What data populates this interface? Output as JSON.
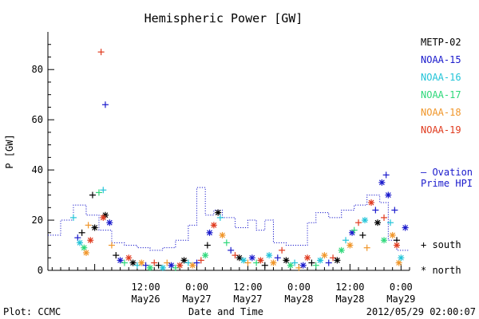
{
  "chart_data": {
    "type": "scatter",
    "title": "Hemispheric Power [GW]",
    "ylabel": "P [GW]",
    "xlabel": "Date and Time",
    "ylim": [
      0,
      95
    ],
    "xlim": [
      "2012-05-25 13:00",
      "2012-05-29 02:00"
    ],
    "y_ticks": [
      0,
      20,
      40,
      60,
      80
    ],
    "x_ticks": [
      {
        "time": "12:00",
        "date": "May26"
      },
      {
        "time": "0:00",
        "date": "May27"
      },
      {
        "time": "12:00",
        "date": "May27"
      },
      {
        "time": "0:00",
        "date": "May28"
      },
      {
        "time": "12:00",
        "date": "May28"
      },
      {
        "time": "0:00",
        "date": "May29"
      }
    ],
    "grid": false,
    "legend_position": "right",
    "series": [
      {
        "name": "METP-02",
        "color": "#000000"
      },
      {
        "name": "NOAA-15",
        "color": "#1a1acc"
      },
      {
        "name": "NOAA-16",
        "color": "#22c4d8"
      },
      {
        "name": "NOAA-17",
        "color": "#2ed87a"
      },
      {
        "name": "NOAA-18",
        "color": "#f0962a"
      },
      {
        "name": "NOAA-19",
        "color": "#e03a1e"
      }
    ],
    "ovation": {
      "label_line1": "— Ovation",
      "label_line2": "Prime HPI",
      "color": "#1a1acc",
      "points": [
        [
          "2012-05-25 13:00",
          14
        ],
        [
          "2012-05-25 16:00",
          20
        ],
        [
          "2012-05-25 19:00",
          26
        ],
        [
          "2012-05-25 22:00",
          22
        ],
        [
          "2012-05-26 01:00",
          16
        ],
        [
          "2012-05-26 04:00",
          11
        ],
        [
          "2012-05-26 07:00",
          10
        ],
        [
          "2012-05-26 10:00",
          9
        ],
        [
          "2012-05-26 13:00",
          8
        ],
        [
          "2012-05-26 16:00",
          9
        ],
        [
          "2012-05-26 19:00",
          12
        ],
        [
          "2012-05-26 22:00",
          18
        ],
        [
          "2012-05-27 00:00",
          33
        ],
        [
          "2012-05-27 02:00",
          22
        ],
        [
          "2012-05-27 04:00",
          24
        ],
        [
          "2012-05-27 06:00",
          21
        ],
        [
          "2012-05-27 09:00",
          17
        ],
        [
          "2012-05-27 12:00",
          20
        ],
        [
          "2012-05-27 14:00",
          16
        ],
        [
          "2012-05-27 16:00",
          20
        ],
        [
          "2012-05-27 18:00",
          11
        ],
        [
          "2012-05-27 21:00",
          10
        ],
        [
          "2012-05-28 00:00",
          10
        ],
        [
          "2012-05-28 02:00",
          19
        ],
        [
          "2012-05-28 04:00",
          23
        ],
        [
          "2012-05-28 07:00",
          21
        ],
        [
          "2012-05-28 10:00",
          24
        ],
        [
          "2012-05-28 13:00",
          26
        ],
        [
          "2012-05-28 16:00",
          30
        ],
        [
          "2012-05-28 19:00",
          27
        ],
        [
          "2012-05-28 21:00",
          12
        ],
        [
          "2012-05-28 23:00",
          8
        ],
        [
          "2012-05-29 02:00",
          8
        ]
      ]
    },
    "markers": {
      "south": "+",
      "north": "*"
    },
    "points": [
      {
        "s": 5,
        "m": "+",
        "t": "2012-05-26 01:30",
        "y": 87
      },
      {
        "s": 1,
        "m": "+",
        "t": "2012-05-26 02:30",
        "y": 66
      },
      {
        "s": 0,
        "m": "+",
        "t": "2012-05-25 23:30",
        "y": 30
      },
      {
        "s": 2,
        "m": "+",
        "t": "2012-05-26 02:00",
        "y": 32
      },
      {
        "s": 3,
        "m": "+",
        "t": "2012-05-26 01:00",
        "y": 31
      },
      {
        "s": 0,
        "m": "*",
        "t": "2012-05-26 02:30",
        "y": 22
      },
      {
        "s": 5,
        "m": "*",
        "t": "2012-05-26 02:00",
        "y": 21
      },
      {
        "s": 1,
        "m": "*",
        "t": "2012-05-26 03:30",
        "y": 19
      },
      {
        "s": 4,
        "m": "+",
        "t": "2012-05-25 22:30",
        "y": 18
      },
      {
        "s": 0,
        "m": "+",
        "t": "2012-05-25 21:00",
        "y": 15
      },
      {
        "s": 1,
        "m": "+",
        "t": "2012-05-25 20:00",
        "y": 13
      },
      {
        "s": 2,
        "m": "*",
        "t": "2012-05-25 20:30",
        "y": 11
      },
      {
        "s": 3,
        "m": "*",
        "t": "2012-05-25 21:30",
        "y": 9
      },
      {
        "s": 4,
        "m": "*",
        "t": "2012-05-25 22:00",
        "y": 7
      },
      {
        "s": 5,
        "m": "*",
        "t": "2012-05-25 23:00",
        "y": 12
      },
      {
        "s": 0,
        "m": "*",
        "t": "2012-05-26 00:00",
        "y": 17
      },
      {
        "s": 2,
        "m": "+",
        "t": "2012-05-25 19:00",
        "y": 21
      },
      {
        "s": 4,
        "m": "+",
        "t": "2012-05-26 04:00",
        "y": 10
      },
      {
        "s": 0,
        "m": "+",
        "t": "2012-05-26 05:00",
        "y": 6
      },
      {
        "s": 1,
        "m": "*",
        "t": "2012-05-26 06:00",
        "y": 4
      },
      {
        "s": 3,
        "m": "+",
        "t": "2012-05-26 07:00",
        "y": 3
      },
      {
        "s": 5,
        "m": "*",
        "t": "2012-05-26 08:00",
        "y": 5
      },
      {
        "s": 0,
        "m": "*",
        "t": "2012-05-26 09:00",
        "y": 3
      },
      {
        "s": 2,
        "m": "+",
        "t": "2012-05-26 10:00",
        "y": 2
      },
      {
        "s": 4,
        "m": "*",
        "t": "2012-05-26 11:00",
        "y": 3
      },
      {
        "s": 1,
        "m": "+",
        "t": "2012-05-26 12:00",
        "y": 2
      },
      {
        "s": 3,
        "m": "*",
        "t": "2012-05-26 13:00",
        "y": 1
      },
      {
        "s": 5,
        "m": "+",
        "t": "2012-05-26 14:00",
        "y": 3
      },
      {
        "s": 0,
        "m": "+",
        "t": "2012-05-26 15:00",
        "y": 2
      },
      {
        "s": 2,
        "m": "*",
        "t": "2012-05-26 16:00",
        "y": 1
      },
      {
        "s": 4,
        "m": "+",
        "t": "2012-05-26 17:00",
        "y": 3
      },
      {
        "s": 1,
        "m": "*",
        "t": "2012-05-26 18:00",
        "y": 2
      },
      {
        "s": 3,
        "m": "+",
        "t": "2012-05-26 19:00",
        "y": 1
      },
      {
        "s": 5,
        "m": "*",
        "t": "2012-05-26 20:00",
        "y": 2
      },
      {
        "s": 0,
        "m": "*",
        "t": "2012-05-26 21:00",
        "y": 4
      },
      {
        "s": 2,
        "m": "+",
        "t": "2012-05-26 22:00",
        "y": 3
      },
      {
        "s": 4,
        "m": "*",
        "t": "2012-05-26 23:00",
        "y": 2
      },
      {
        "s": 1,
        "m": "+",
        "t": "2012-05-27 00:00",
        "y": 3
      },
      {
        "s": 5,
        "m": "+",
        "t": "2012-05-27 01:00",
        "y": 4
      },
      {
        "s": 3,
        "m": "*",
        "t": "2012-05-27 02:00",
        "y": 6
      },
      {
        "s": 0,
        "m": "+",
        "t": "2012-05-27 02:30",
        "y": 10
      },
      {
        "s": 1,
        "m": "*",
        "t": "2012-05-27 03:00",
        "y": 15
      },
      {
        "s": 5,
        "m": "*",
        "t": "2012-05-27 04:00",
        "y": 18
      },
      {
        "s": 0,
        "m": "*",
        "t": "2012-05-27 05:00",
        "y": 23
      },
      {
        "s": 2,
        "m": "+",
        "t": "2012-05-27 05:30",
        "y": 21
      },
      {
        "s": 4,
        "m": "*",
        "t": "2012-05-27 06:00",
        "y": 14
      },
      {
        "s": 3,
        "m": "+",
        "t": "2012-05-27 07:00",
        "y": 11
      },
      {
        "s": 1,
        "m": "+",
        "t": "2012-05-27 08:00",
        "y": 8
      },
      {
        "s": 5,
        "m": "+",
        "t": "2012-05-27 09:00",
        "y": 6
      },
      {
        "s": 0,
        "m": "*",
        "t": "2012-05-27 10:00",
        "y": 5
      },
      {
        "s": 2,
        "m": "*",
        "t": "2012-05-27 11:00",
        "y": 4
      },
      {
        "s": 4,
        "m": "+",
        "t": "2012-05-27 12:00",
        "y": 3
      },
      {
        "s": 1,
        "m": "*",
        "t": "2012-05-27 13:00",
        "y": 5
      },
      {
        "s": 3,
        "m": "+",
        "t": "2012-05-27 14:00",
        "y": 3
      },
      {
        "s": 5,
        "m": "*",
        "t": "2012-05-27 15:00",
        "y": 4
      },
      {
        "s": 0,
        "m": "+",
        "t": "2012-05-27 16:00",
        "y": 2
      },
      {
        "s": 2,
        "m": "*",
        "t": "2012-05-27 17:00",
        "y": 6
      },
      {
        "s": 4,
        "m": "*",
        "t": "2012-05-27 18:00",
        "y": 3
      },
      {
        "s": 1,
        "m": "+",
        "t": "2012-05-27 19:00",
        "y": 5
      },
      {
        "s": 5,
        "m": "+",
        "t": "2012-05-27 20:00",
        "y": 8
      },
      {
        "s": 0,
        "m": "*",
        "t": "2012-05-27 21:00",
        "y": 4
      },
      {
        "s": 3,
        "m": "*",
        "t": "2012-05-27 22:00",
        "y": 2
      },
      {
        "s": 2,
        "m": "+",
        "t": "2012-05-27 23:00",
        "y": 3
      },
      {
        "s": 4,
        "m": "+",
        "t": "2012-05-28 00:00",
        "y": 1
      },
      {
        "s": 1,
        "m": "*",
        "t": "2012-05-28 01:00",
        "y": 2
      },
      {
        "s": 5,
        "m": "*",
        "t": "2012-05-28 02:00",
        "y": 5
      },
      {
        "s": 0,
        "m": "+",
        "t": "2012-05-28 03:00",
        "y": 3
      },
      {
        "s": 3,
        "m": "+",
        "t": "2012-05-28 04:00",
        "y": 2
      },
      {
        "s": 2,
        "m": "*",
        "t": "2012-05-28 05:00",
        "y": 4
      },
      {
        "s": 4,
        "m": "*",
        "t": "2012-05-28 06:00",
        "y": 6
      },
      {
        "s": 1,
        "m": "+",
        "t": "2012-05-28 07:00",
        "y": 3
      },
      {
        "s": 5,
        "m": "+",
        "t": "2012-05-28 08:00",
        "y": 5
      },
      {
        "s": 0,
        "m": "*",
        "t": "2012-05-28 09:00",
        "y": 4
      },
      {
        "s": 3,
        "m": "*",
        "t": "2012-05-28 10:00",
        "y": 8
      },
      {
        "s": 2,
        "m": "+",
        "t": "2012-05-28 11:00",
        "y": 12
      },
      {
        "s": 4,
        "m": "*",
        "t": "2012-05-28 12:00",
        "y": 10
      },
      {
        "s": 1,
        "m": "*",
        "t": "2012-05-28 12:30",
        "y": 15
      },
      {
        "s": 3,
        "m": "+",
        "t": "2012-05-28 13:00",
        "y": 16
      },
      {
        "s": 5,
        "m": "+",
        "t": "2012-05-28 14:00",
        "y": 19
      },
      {
        "s": 0,
        "m": "+",
        "t": "2012-05-28 15:00",
        "y": 14
      },
      {
        "s": 2,
        "m": "*",
        "t": "2012-05-28 15:30",
        "y": 20
      },
      {
        "s": 4,
        "m": "+",
        "t": "2012-05-28 16:00",
        "y": 9
      },
      {
        "s": 5,
        "m": "*",
        "t": "2012-05-28 17:00",
        "y": 27
      },
      {
        "s": 1,
        "m": "+",
        "t": "2012-05-28 18:00",
        "y": 24
      },
      {
        "s": 0,
        "m": "*",
        "t": "2012-05-28 18:30",
        "y": 19
      },
      {
        "s": 1,
        "m": "*",
        "t": "2012-05-28 19:30",
        "y": 35
      },
      {
        "s": 3,
        "m": "*",
        "t": "2012-05-28 20:00",
        "y": 12
      },
      {
        "s": 5,
        "m": "+",
        "t": "2012-05-28 20:00",
        "y": 21
      },
      {
        "s": 1,
        "m": "+",
        "t": "2012-05-28 20:30",
        "y": 38
      },
      {
        "s": 1,
        "m": "*",
        "t": "2012-05-28 21:00",
        "y": 30
      },
      {
        "s": 2,
        "m": "+",
        "t": "2012-05-28 21:30",
        "y": 19
      },
      {
        "s": 4,
        "m": "*",
        "t": "2012-05-28 22:00",
        "y": 14
      },
      {
        "s": 1,
        "m": "+",
        "t": "2012-05-28 22:30",
        "y": 24
      },
      {
        "s": 0,
        "m": "+",
        "t": "2012-05-28 23:00",
        "y": 12
      },
      {
        "s": 5,
        "m": "*",
        "t": "2012-05-28 23:00",
        "y": 10
      },
      {
        "s": 4,
        "m": "*",
        "t": "2012-05-28 23:30",
        "y": 3
      },
      {
        "s": 2,
        "m": "*",
        "t": "2012-05-29 00:00",
        "y": 5
      },
      {
        "s": 1,
        "m": "*",
        "t": "2012-05-29 01:00",
        "y": 17
      }
    ]
  },
  "labels": {
    "legend_south": "+ south",
    "legend_north": "* north",
    "footer_left": "Plot: CCMC",
    "footer_right": "2012/05/29 02:00:07"
  }
}
